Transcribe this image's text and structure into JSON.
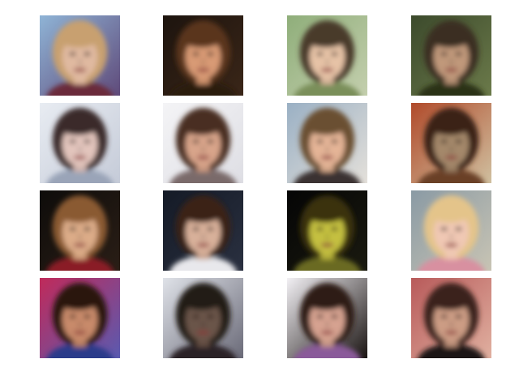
{
  "figure": {
    "rows": 4,
    "cols": 4,
    "tiles": [
      {
        "bg1": "#8fb4d6",
        "bg2": "#5f4a7a",
        "hair": "#c8a070",
        "skin": "#e0b9a0",
        "accent": "#6a2a3a"
      },
      {
        "bg1": "#1d140e",
        "bg2": "#3a2618",
        "hair": "#5a341c",
        "skin": "#d89a74",
        "accent": "#2a1a10"
      },
      {
        "bg1": "#8fae7a",
        "bg2": "#c4cfae",
        "hair": "#4a3a2c",
        "skin": "#e6c2a6",
        "accent": "#7a8f5a"
      },
      {
        "bg1": "#3c4a2c",
        "bg2": "#6b7a4a",
        "hair": "#3a2e22",
        "skin": "#c0987a",
        "accent": "#2a3018"
      },
      {
        "bg1": "#e8ecf2",
        "bg2": "#c5cbd8",
        "hair": "#3a2a2a",
        "skin": "#e2c4bc",
        "accent": "#9aa4b8"
      },
      {
        "bg1": "#f4f4f6",
        "bg2": "#dedee4",
        "hair": "#4a2e22",
        "skin": "#d8a48a",
        "accent": "#7a6a6a"
      },
      {
        "bg1": "#9ab0c4",
        "bg2": "#e4e0da",
        "hair": "#6a5032",
        "skin": "#e4b496",
        "accent": "#3a3230"
      },
      {
        "bg1": "#b04a2a",
        "bg2": "#d0c0a0",
        "hair": "#3a2418",
        "skin": "#a4886a",
        "accent": "#6a4028"
      },
      {
        "bg1": "#0e0c0a",
        "bg2": "#2a1e16",
        "hair": "#8a5a30",
        "skin": "#dcac88",
        "accent": "#8a1e28"
      },
      {
        "bg1": "#141a26",
        "bg2": "#2a3040",
        "hair": "#3a2418",
        "skin": "#d8b09a",
        "accent": "#e8e8ec"
      },
      {
        "bg1": "#050505",
        "bg2": "#1a1a10",
        "hair": "#3a3010",
        "skin": "#c4c040",
        "accent": "#6a6a20"
      },
      {
        "bg1": "#8a9aa4",
        "bg2": "#c8c4b4",
        "hair": "#e4c48a",
        "skin": "#f0c8b4",
        "accent": "#d890a0"
      },
      {
        "bg1": "#c02a5a",
        "bg2": "#5a5ab0",
        "hair": "#2a1810",
        "skin": "#c88a6a",
        "accent": "#2a3a8a"
      },
      {
        "bg1": "#dfe2e8",
        "bg2": "#6a6a78",
        "hair": "#241a18",
        "skin": "#6a5448",
        "accent": "#2a2226"
      },
      {
        "bg1": "#f2f0f4",
        "bg2": "#1a1412",
        "hair": "#2e1e16",
        "skin": "#d6a290",
        "accent": "#8a5a9a"
      },
      {
        "bg1": "#b85a5a",
        "bg2": "#e0b0a0",
        "hair": "#3a241c",
        "skin": "#cc9c84",
        "accent": "#1a1412"
      }
    ]
  }
}
